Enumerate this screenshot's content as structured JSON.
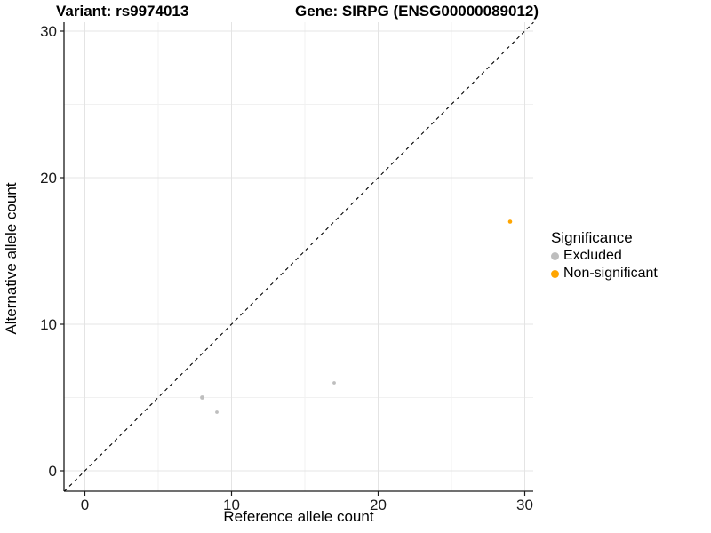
{
  "titles": {
    "left": "Variant: rs9974013",
    "right": "Gene: SIRPG (ENSG00000089012)"
  },
  "legend": {
    "title": "Significance",
    "items": [
      {
        "label": "Excluded",
        "color": "#BEBEBE"
      },
      {
        "label": "Non-significant",
        "color": "#FFA500"
      }
    ]
  },
  "chart_data": {
    "type": "scatter",
    "title": "Variant: rs9974013 — Gene: SIRPG (ENSG00000089012)",
    "xlabel": "Reference allele count",
    "ylabel": "Alternative allele count",
    "xlim": [
      -1.4,
      31.5
    ],
    "ylim": [
      -1.4,
      30.6
    ],
    "x_ticks": [
      0,
      10,
      20,
      30
    ],
    "y_ticks": [
      0,
      10,
      20,
      30
    ],
    "x_minor_ticks": [
      5,
      15,
      25
    ],
    "y_minor_ticks": [
      5,
      15,
      25
    ],
    "grid": true,
    "legend_position": "right",
    "identity_line": {
      "style": "dashed",
      "from": [
        -1.4,
        -1.4
      ],
      "to": [
        30.6,
        30.6
      ]
    },
    "series": [
      {
        "name": "Excluded",
        "color": "#BEBEBE",
        "points": [
          {
            "x": 8,
            "y": 5,
            "r": 2.4
          },
          {
            "x": 9,
            "y": 4,
            "r": 1.9
          },
          {
            "x": 17,
            "y": 6,
            "r": 1.9
          }
        ]
      },
      {
        "name": "Non-significant",
        "color": "#FFA500",
        "points": [
          {
            "x": 29,
            "y": 17,
            "r": 2.3
          }
        ]
      }
    ],
    "colors": {
      "grid_major": "#E4E4E4",
      "grid_minor": "#F1F1F1",
      "axis_line": "#1a1a1a",
      "tick_text": "#1a1a1a",
      "identity_line": "#000000"
    }
  }
}
